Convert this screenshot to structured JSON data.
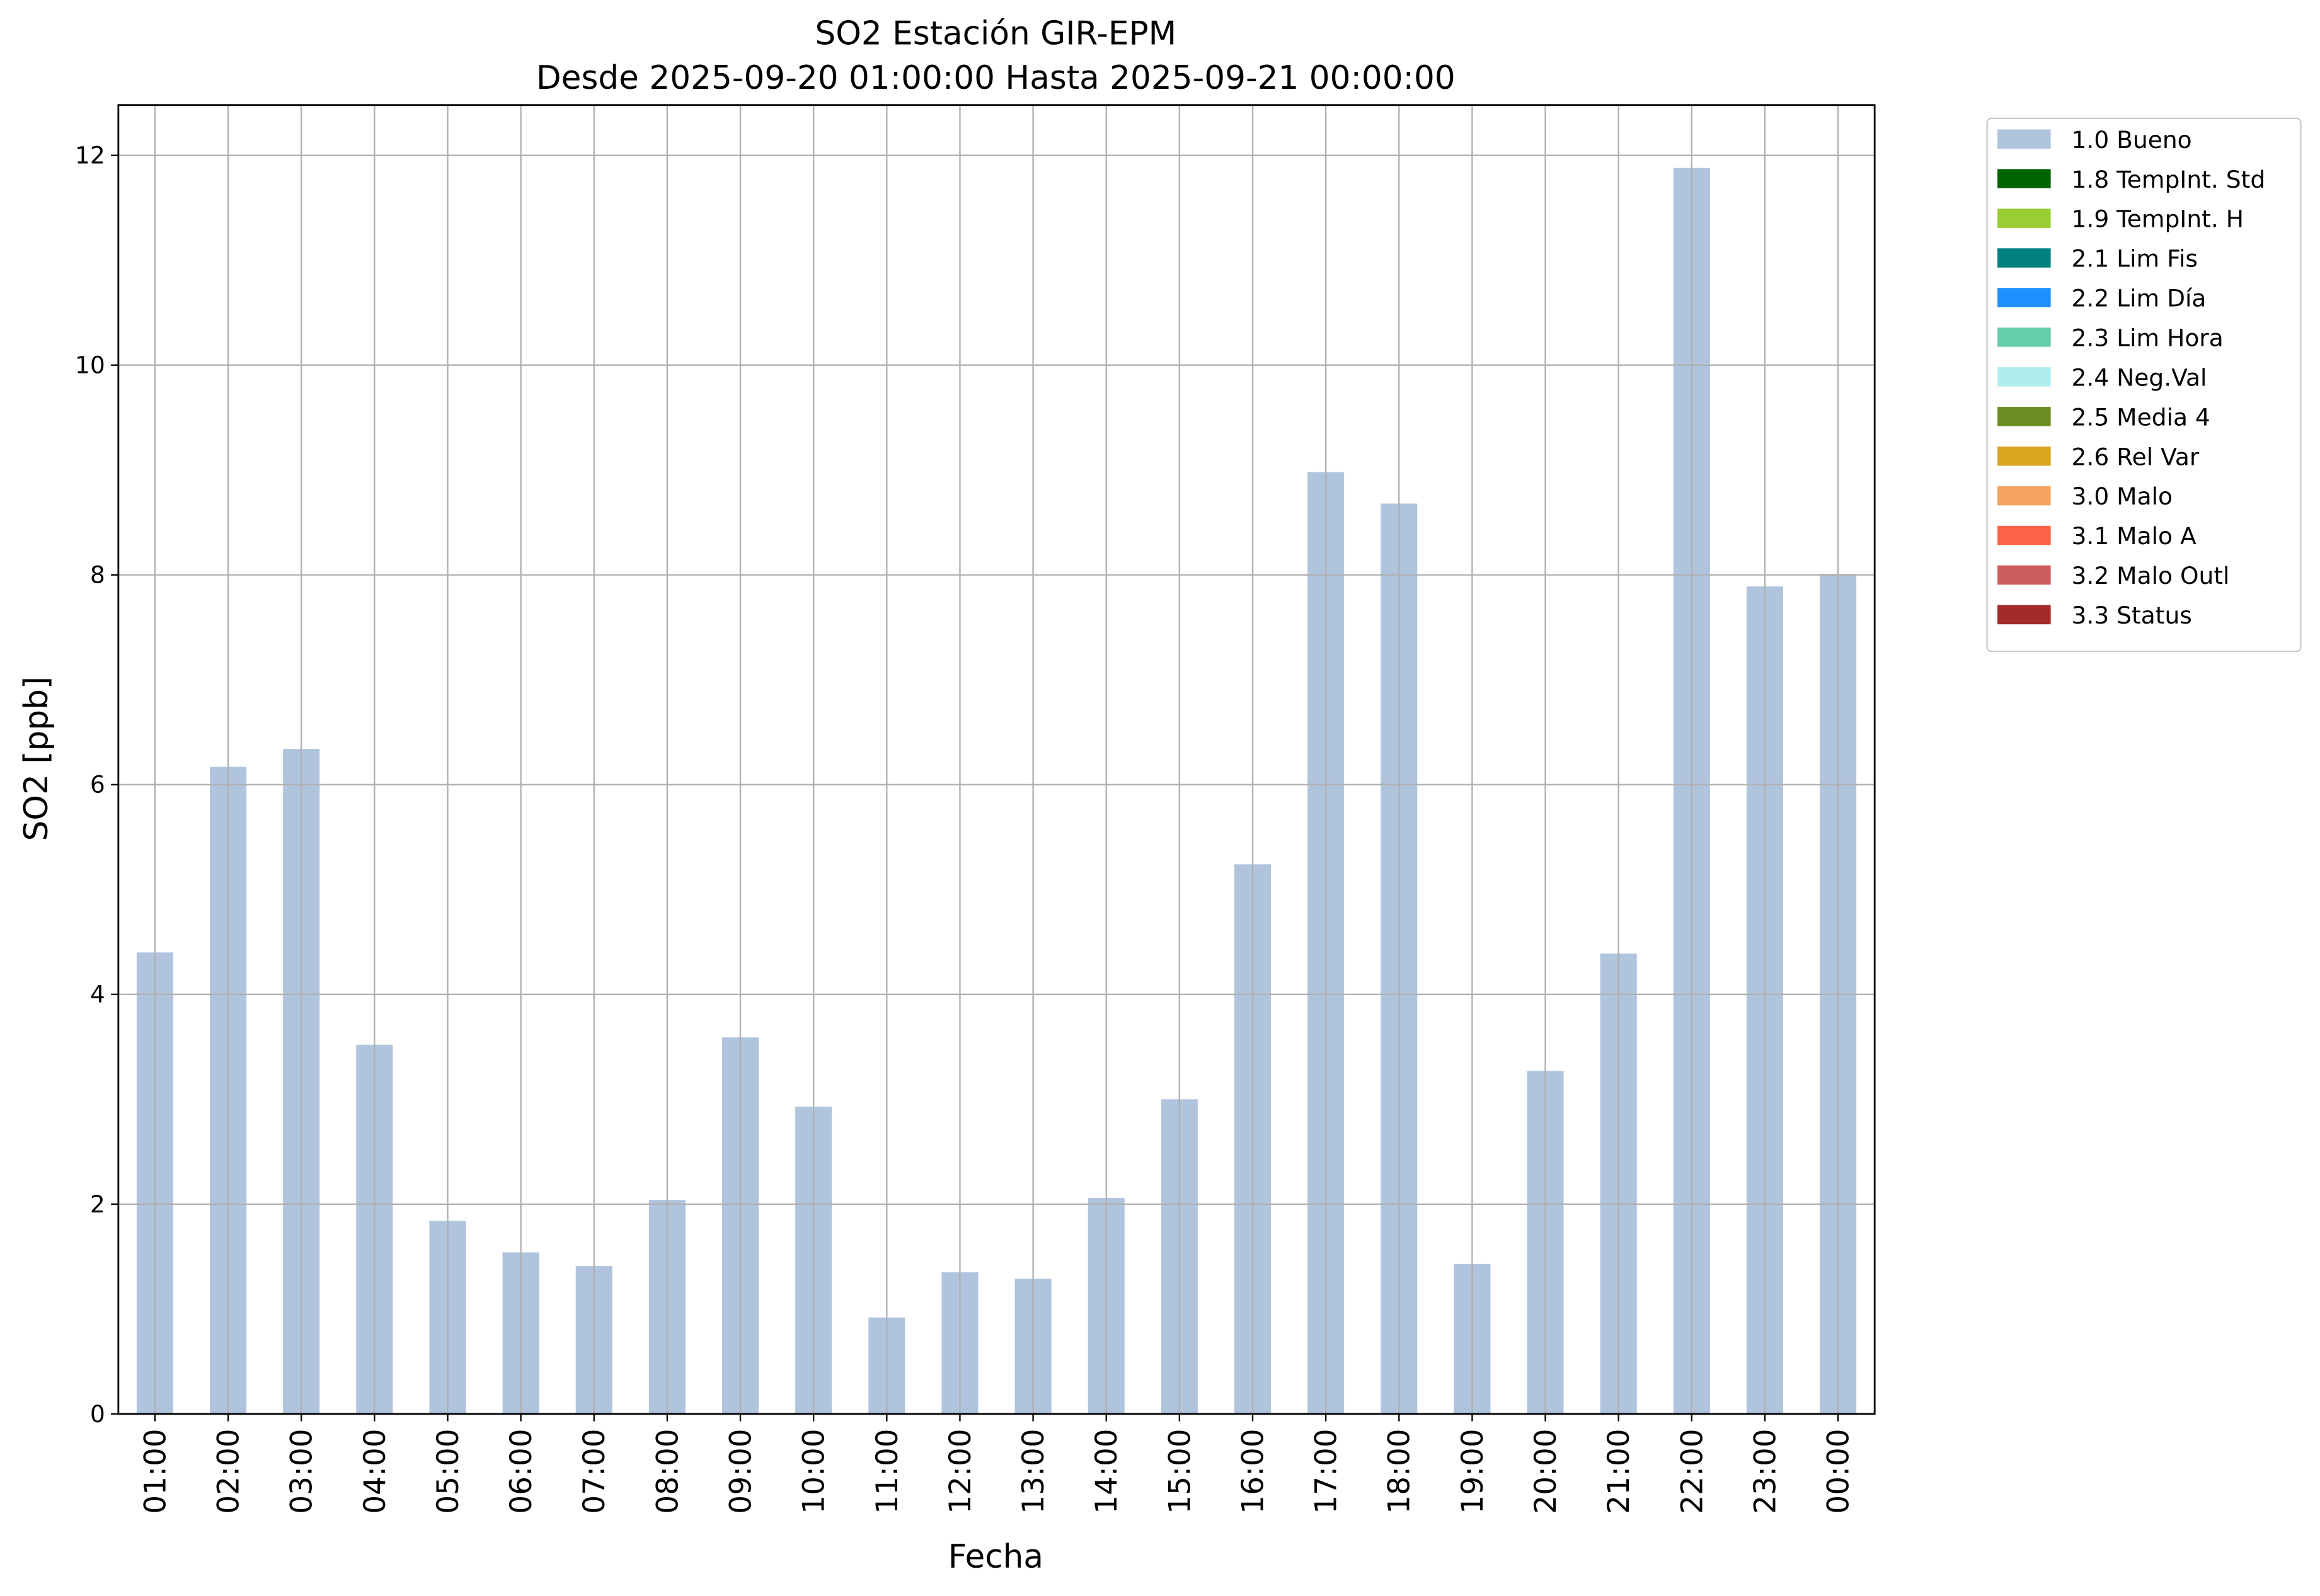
{
  "chart_data": {
    "type": "bar",
    "title": "SO2 Estación GIR-EPM",
    "subtitle": "Desde 2025-09-20 01:00:00 Hasta 2025-09-21 00:00:00",
    "x_label": "Fecha",
    "y_label": "SO2 [ppb]",
    "categories": [
      "01:00",
      "02:00",
      "03:00",
      "04:00",
      "05:00",
      "06:00",
      "07:00",
      "08:00",
      "09:00",
      "10:00",
      "11:00",
      "12:00",
      "13:00",
      "14:00",
      "15:00",
      "16:00",
      "17:00",
      "18:00",
      "19:00",
      "20:00",
      "21:00",
      "22:00",
      "23:00",
      "00:00"
    ],
    "series": [
      {
        "name": "1.0 Bueno",
        "color": "#b0c4de",
        "values": [
          4.4,
          6.17,
          6.34,
          3.52,
          1.84,
          1.54,
          1.41,
          2.04,
          3.59,
          2.93,
          0.92,
          1.35,
          1.29,
          2.06,
          3.0,
          5.24,
          8.98,
          8.68,
          1.43,
          3.27,
          4.39,
          11.88,
          7.89,
          8.01
        ]
      },
      {
        "name": "1.8 TempInt. Std",
        "color": "#006400"
      },
      {
        "name": "1.9 TempInt. H",
        "color": "#9acd32"
      },
      {
        "name": "2.1 Lim Fis",
        "color": "#008080"
      },
      {
        "name": "2.2 Lim Día",
        "color": "#1e90ff"
      },
      {
        "name": "2.3 Lim Hora",
        "color": "#66cdaa"
      },
      {
        "name": "2.4 Neg.Val",
        "color": "#afeeee"
      },
      {
        "name": "2.5 Media 4",
        "color": "#6b8e23"
      },
      {
        "name": "2.6 Rel Var",
        "color": "#daa520"
      },
      {
        "name": "3.0 Malo",
        "color": "#f4a460"
      },
      {
        "name": "3.1 Malo A",
        "color": "#ff6347"
      },
      {
        "name": "3.2 Malo Outl",
        "color": "#cd5c5c"
      },
      {
        "name": "3.3 Status",
        "color": "#a52a2a"
      }
    ],
    "ylim": [
      0,
      12.48
    ],
    "yticks": [
      0,
      2,
      4,
      6,
      8,
      10,
      12
    ],
    "grid": true,
    "legend": "outside-upper-right"
  }
}
